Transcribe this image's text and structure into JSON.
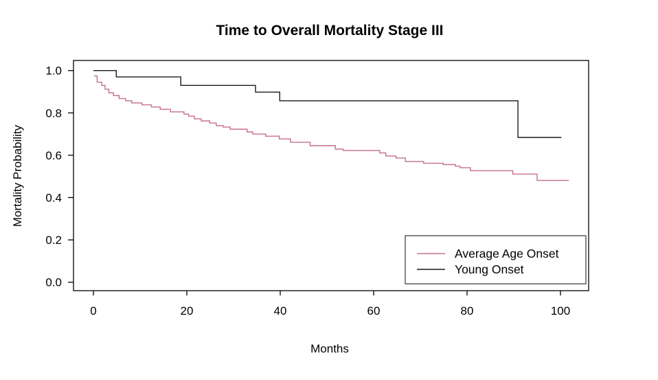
{
  "chart_data": {
    "type": "line",
    "subtype": "kaplan-meier-step-curve",
    "title": "Time to Overall Mortality Stage III",
    "xlabel": "Months",
    "ylabel": "Mortality Probability",
    "xlim": [
      -4.3,
      106.0
    ],
    "ylim": [
      -0.04,
      1.05
    ],
    "x_ticks": [
      0,
      20,
      40,
      60,
      80,
      100
    ],
    "y_ticks": [
      0.0,
      0.2,
      0.4,
      0.6,
      0.8,
      1.0
    ],
    "y_tick_labels": [
      "0.0",
      "0.2",
      "0.4",
      "0.6",
      "0.8",
      "1.0"
    ],
    "grid": false,
    "legend_position": "bottom-right",
    "axis_color": "#000000",
    "series": [
      {
        "name": "Average Age Onset",
        "color": "#C76E87",
        "line_width": 1.4,
        "end_time": 101.8,
        "steps": [
          [
            0.1,
            0.975
          ],
          [
            0.8,
            0.945
          ],
          [
            1.8,
            0.93
          ],
          [
            2.5,
            0.912
          ],
          [
            3.3,
            0.895
          ],
          [
            4.3,
            0.882
          ],
          [
            5.5,
            0.868
          ],
          [
            6.9,
            0.857
          ],
          [
            8.2,
            0.847
          ],
          [
            10.4,
            0.838
          ],
          [
            12.4,
            0.828
          ],
          [
            14.3,
            0.817
          ],
          [
            16.5,
            0.805
          ],
          [
            19.4,
            0.794
          ],
          [
            20.4,
            0.785
          ],
          [
            21.6,
            0.772
          ],
          [
            23.1,
            0.762
          ],
          [
            24.9,
            0.752
          ],
          [
            26.3,
            0.74
          ],
          [
            27.8,
            0.733
          ],
          [
            29.3,
            0.723
          ],
          [
            32.9,
            0.71
          ],
          [
            34.1,
            0.7
          ],
          [
            36.9,
            0.69
          ],
          [
            39.8,
            0.677
          ],
          [
            42.2,
            0.661
          ],
          [
            46.4,
            0.645
          ],
          [
            51.8,
            0.629
          ],
          [
            53.5,
            0.622
          ],
          [
            61.3,
            0.611
          ],
          [
            62.6,
            0.596
          ],
          [
            64.8,
            0.587
          ],
          [
            66.8,
            0.57
          ],
          [
            70.7,
            0.562
          ],
          [
            74.9,
            0.556
          ],
          [
            77.5,
            0.548
          ],
          [
            78.5,
            0.541
          ],
          [
            80.7,
            0.527
          ],
          [
            89.8,
            0.511
          ],
          [
            95.0,
            0.481
          ]
        ]
      },
      {
        "name": "Young Onset",
        "color": "#1A1A1A",
        "line_width": 1.4,
        "end_time": 100.2,
        "steps": [
          [
            0.0,
            1.0
          ],
          [
            4.9,
            0.97
          ],
          [
            18.7,
            0.93
          ],
          [
            34.7,
            0.898
          ],
          [
            39.9,
            0.857
          ],
          [
            90.9,
            0.684
          ]
        ]
      }
    ]
  }
}
